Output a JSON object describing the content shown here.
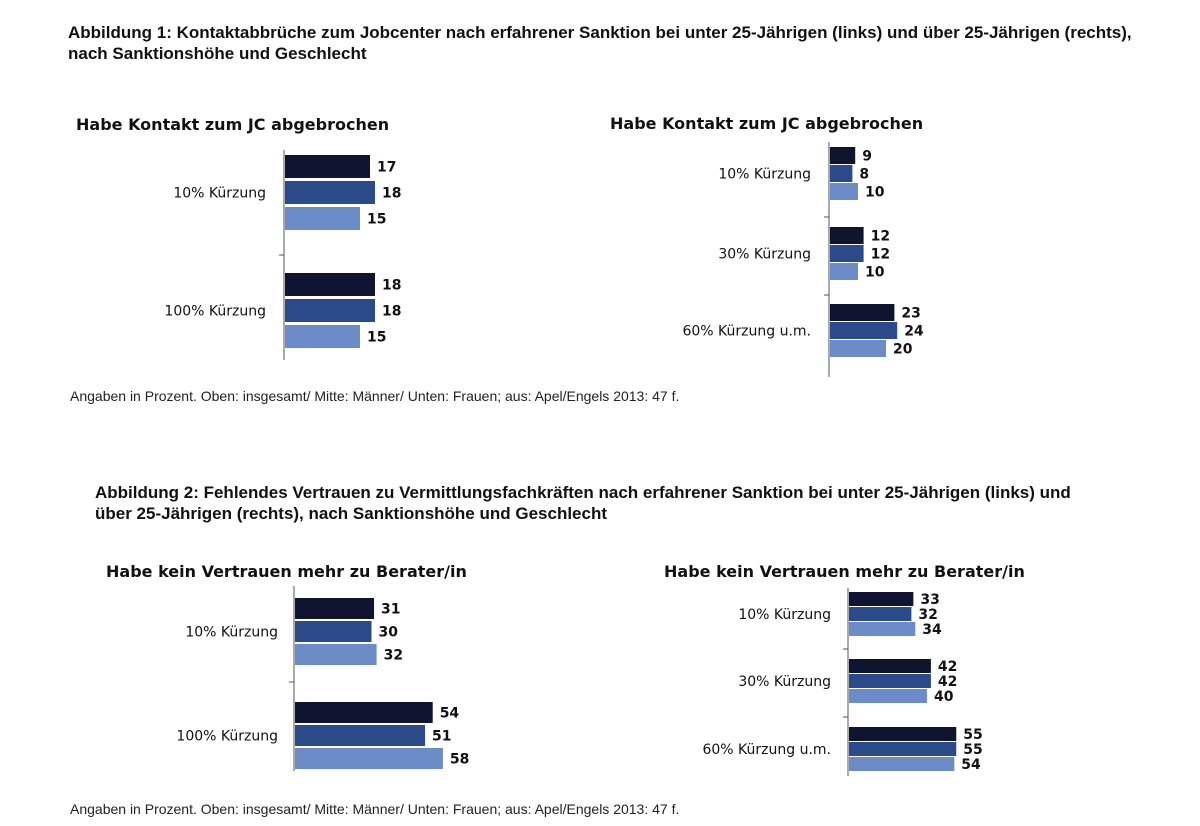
{
  "figure1": {
    "title": "Abbildung 1: Kontaktabbrüche zum Jobcenter nach erfahrener Sanktion bei unter 25-Jährigen (links) und über 25-Jährigen (rechts), nach Sanktionshöhe und Geschlecht",
    "caption": "Angaben in Prozent. Oben: insgesamt/ Mitte: Männer/ Unten: Frauen; aus: Apel/Engels 2013: 47 f."
  },
  "figure2": {
    "title": "Abbildung 2: Fehlendes Vertrauen zu Vermittlungsfachkräften nach erfahrener Sanktion bei unter 25-Jährigen (links) und über 25-Jährigen (rechts), nach Sanktionshöhe und Geschlecht",
    "caption": "Angaben in Prozent. Oben: insgesamt/ Mitte: Männer/ Unten: Frauen; aus: Apel/Engels 2013: 47 f."
  },
  "colors": {
    "insgesamt": "#0f1430",
    "maenner": "#2a4a8a",
    "frauen": "#6b8cc6",
    "axis": "#555555"
  },
  "chart_data": [
    {
      "id": "chart-1a",
      "type": "bar",
      "orientation": "horizontal",
      "title": "Habe Kontakt zum JC abgebrochen",
      "categories": [
        "10% Kürzung",
        "100% Kürzung"
      ],
      "series": [
        {
          "name": "insgesamt",
          "values": [
            17,
            18
          ]
        },
        {
          "name": "Männer",
          "values": [
            18,
            18
          ]
        },
        {
          "name": "Frauen",
          "values": [
            15,
            15
          ]
        }
      ],
      "unit": "Prozent"
    },
    {
      "id": "chart-1b",
      "type": "bar",
      "orientation": "horizontal",
      "title": "Habe Kontakt zum JC abgebrochen",
      "categories": [
        "10% Kürzung",
        "30% Kürzung",
        "60% Kürzung u.m."
      ],
      "series": [
        {
          "name": "insgesamt",
          "values": [
            9,
            12,
            23
          ]
        },
        {
          "name": "Männer",
          "values": [
            8,
            12,
            24
          ]
        },
        {
          "name": "Frauen",
          "values": [
            10,
            10,
            20
          ]
        }
      ],
      "unit": "Prozent"
    },
    {
      "id": "chart-2a",
      "type": "bar",
      "orientation": "horizontal",
      "title": "Habe kein Vertrauen mehr zu Berater/in",
      "categories": [
        "10% Kürzung",
        "100% Kürzung"
      ],
      "series": [
        {
          "name": "insgesamt",
          "values": [
            31,
            54
          ]
        },
        {
          "name": "Männer",
          "values": [
            30,
            51
          ]
        },
        {
          "name": "Frauen",
          "values": [
            32,
            58
          ]
        }
      ],
      "unit": "Prozent"
    },
    {
      "id": "chart-2b",
      "type": "bar",
      "orientation": "horizontal",
      "title": "Habe kein Vertrauen mehr zu Berater/in",
      "categories": [
        "10% Kürzung",
        "30% Kürzung",
        "60% Kürzung u.m."
      ],
      "series": [
        {
          "name": "insgesamt",
          "values": [
            33,
            42,
            55
          ]
        },
        {
          "name": "Männer",
          "values": [
            32,
            42,
            55
          ]
        },
        {
          "name": "Frauen",
          "values": [
            34,
            40,
            54
          ]
        }
      ],
      "unit": "Prozent"
    }
  ]
}
